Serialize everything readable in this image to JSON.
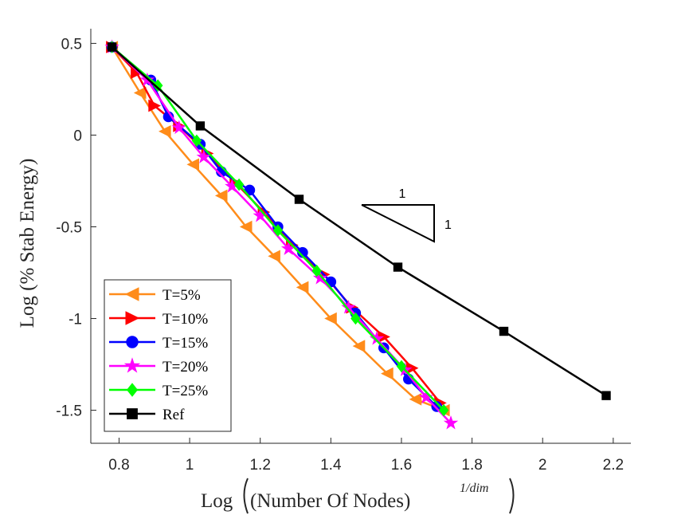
{
  "chart_data": {
    "type": "line",
    "title": "",
    "xlabel": {
      "prefix": "Log",
      "inner": "(Number Of Nodes)",
      "exponent": "1/dim"
    },
    "ylabel": "Log (% Stab Energy)",
    "xlim": [
      0.72,
      2.25
    ],
    "ylim": [
      -1.68,
      0.58
    ],
    "xticks": [
      0.8,
      1,
      1.2,
      1.4,
      1.6,
      1.8,
      2,
      2.2
    ],
    "xtick_labels": [
      "0.8",
      "1",
      "1.2",
      "1.4",
      "1.6",
      "1.8",
      "2",
      "2.2"
    ],
    "yticks": [
      0.5,
      0,
      -0.5,
      -1,
      -1.5
    ],
    "ytick_labels": [
      "0.5",
      "0",
      "-0.5",
      "-1",
      "-1.5"
    ],
    "grid": false,
    "legend_position": "bottom-left",
    "series": [
      {
        "name": "T=5%",
        "color": "#ff8c1a",
        "marker": "triangle-left",
        "x": [
          0.78,
          0.86,
          0.93,
          1.01,
          1.09,
          1.16,
          1.24,
          1.32,
          1.4,
          1.48,
          1.56,
          1.64,
          1.72
        ],
        "y": [
          0.48,
          0.23,
          0.02,
          -0.16,
          -0.33,
          -0.5,
          -0.66,
          -0.83,
          -1.0,
          -1.15,
          -1.3,
          -1.44,
          -1.5
        ]
      },
      {
        "name": "T=10%",
        "color": "#ff0000",
        "marker": "triangle-right",
        "x": [
          0.78,
          0.85,
          0.9,
          0.97,
          1.05,
          1.13,
          1.21,
          1.29,
          1.38,
          1.46,
          1.55,
          1.63,
          1.71
        ],
        "y": [
          0.48,
          0.34,
          0.16,
          0.05,
          -0.1,
          -0.26,
          -0.42,
          -0.6,
          -0.76,
          -0.94,
          -1.1,
          -1.27,
          -1.46
        ]
      },
      {
        "name": "T=15%",
        "color": "#0000ff",
        "marker": "circle",
        "x": [
          0.78,
          0.89,
          0.94,
          1.03,
          1.09,
          1.17,
          1.25,
          1.32,
          1.4,
          1.47,
          1.55,
          1.62,
          1.7
        ],
        "y": [
          0.48,
          0.3,
          0.1,
          -0.05,
          -0.2,
          -0.3,
          -0.5,
          -0.64,
          -0.8,
          -0.97,
          -1.16,
          -1.33,
          -1.48
        ]
      },
      {
        "name": "T=20%",
        "color": "#ff00ff",
        "marker": "star",
        "x": [
          0.78,
          0.88,
          0.97,
          1.04,
          1.12,
          1.2,
          1.28,
          1.37,
          1.45,
          1.53,
          1.61,
          1.67,
          1.74
        ],
        "y": [
          0.48,
          0.3,
          0.04,
          -0.12,
          -0.28,
          -0.44,
          -0.62,
          -0.78,
          -0.94,
          -1.11,
          -1.28,
          -1.43,
          -1.57
        ]
      },
      {
        "name": "T=25%",
        "color": "#00ff00",
        "marker": "diamond",
        "x": [
          0.78,
          0.91,
          1.02,
          1.14,
          1.25,
          1.36,
          1.47,
          1.6,
          1.72
        ],
        "y": [
          0.48,
          0.27,
          -0.03,
          -0.27,
          -0.52,
          -0.74,
          -1.0,
          -1.26,
          -1.5
        ]
      },
      {
        "name": "Ref",
        "color": "#000000",
        "marker": "square",
        "x": [
          0.78,
          1.03,
          1.31,
          1.59,
          1.89,
          2.18
        ],
        "y": [
          0.48,
          0.05,
          -0.35,
          -0.72,
          -1.07,
          -1.42
        ]
      }
    ],
    "annotations": [
      {
        "type": "slope-triangle",
        "horizontal_label": "1",
        "vertical_label": "1"
      }
    ]
  }
}
